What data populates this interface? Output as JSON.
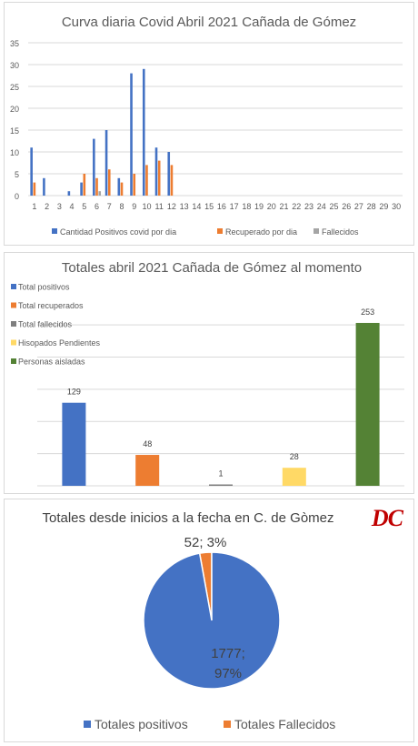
{
  "chart_data": [
    {
      "type": "bar",
      "title": "Curva diaria Covid Abril 2021 Cañada de Gómez",
      "categories": [
        "1",
        "2",
        "3",
        "4",
        "5",
        "6",
        "7",
        "8",
        "9",
        "10",
        "11",
        "12",
        "13",
        "14",
        "15",
        "16",
        "17",
        "18",
        "19",
        "20",
        "21",
        "22",
        "23",
        "24",
        "25",
        "26",
        "27",
        "28",
        "29",
        "30"
      ],
      "series": [
        {
          "name": "Cantidad Positivos covid por dia",
          "color": "#4472c4",
          "values": [
            11,
            4,
            0,
            1,
            3,
            13,
            15,
            4,
            28,
            29,
            11,
            10,
            0,
            0,
            0,
            0,
            0,
            0,
            0,
            0,
            0,
            0,
            0,
            0,
            0,
            0,
            0,
            0,
            0,
            0
          ]
        },
        {
          "name": "Recuperado por dia",
          "color": "#ed7d31",
          "values": [
            3,
            0,
            0,
            0,
            5,
            4,
            6,
            3,
            5,
            7,
            8,
            7,
            0,
            0,
            0,
            0,
            0,
            0,
            0,
            0,
            0,
            0,
            0,
            0,
            0,
            0,
            0,
            0,
            0,
            0
          ]
        },
        {
          "name": "Fallecidos",
          "color": "#a5a5a5",
          "values": [
            0,
            0,
            0,
            0,
            0,
            1,
            0,
            0,
            0,
            0,
            0,
            0,
            0,
            0,
            0,
            0,
            0,
            0,
            0,
            0,
            0,
            0,
            0,
            0,
            0,
            0,
            0,
            0,
            0,
            0
          ]
        }
      ],
      "yticks": [
        "0",
        "5",
        "10",
        "15",
        "20",
        "25",
        "30",
        "35"
      ],
      "ylim": [
        0,
        35
      ],
      "grid": true,
      "legend": "bottom"
    },
    {
      "type": "bar",
      "title": "Totales abril 2021 Cañada de Gómez al momento",
      "categories": [
        "Total positivos",
        "Total recuperados",
        "Total fallecidos",
        "Hisopados Pendientes",
        "Personas aisladas"
      ],
      "values": [
        129,
        48,
        1,
        28,
        253
      ],
      "value_labels": [
        "129",
        "48",
        "1",
        "28",
        "253"
      ],
      "colors": [
        "#4472c4",
        "#ed7d31",
        "#7f7f7f",
        "#ffd966",
        "#548235"
      ],
      "ylim": [
        0,
        260
      ],
      "grid": true,
      "legend": "top-left"
    },
    {
      "type": "pie",
      "title": "Totales desde inicios a la fecha en C. de Gòmez",
      "slices": [
        {
          "name": "Totales positivos",
          "value": 1777,
          "label_value": "1777;",
          "label_pct": "97%",
          "color": "#4472c4"
        },
        {
          "name": "Totales Fallecidos",
          "value": 52,
          "label": "52; 3%",
          "color": "#ed7d31"
        }
      ],
      "legend": "bottom"
    }
  ],
  "logo_text": "DC"
}
